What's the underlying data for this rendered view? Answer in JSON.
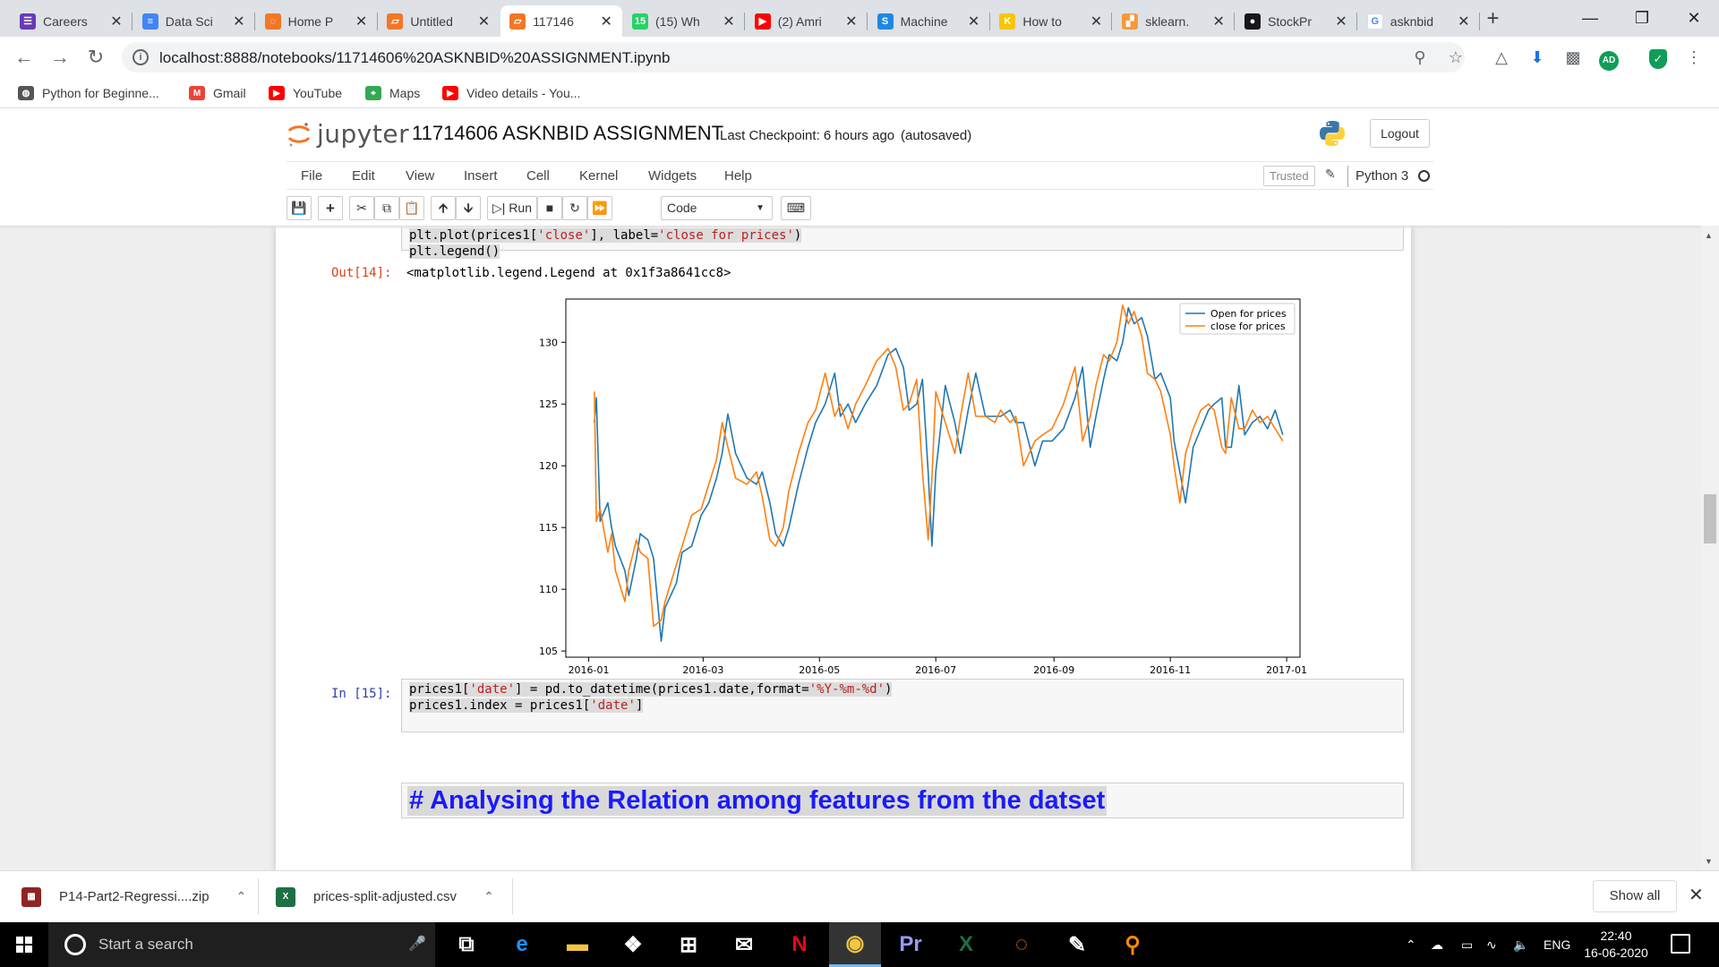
{
  "browser": {
    "tabs": [
      {
        "label": "Careers",
        "color": "#673ab7",
        "glyph": "☰",
        "icon": "careers-icon"
      },
      {
        "label": "Data Sci",
        "color": "#4285f4",
        "glyph": "≡",
        "icon": "docs-icon"
      },
      {
        "label": "Home P",
        "color": "#f37726",
        "glyph": "◌",
        "icon": "jupyter-icon"
      },
      {
        "label": "Untitled",
        "color": "#f37726",
        "glyph": "▱",
        "icon": "notebook-icon"
      },
      {
        "label": "117146",
        "color": "#f37726",
        "glyph": "▱",
        "icon": "notebook-icon"
      },
      {
        "label": "(15) Wh",
        "color": "#25d366",
        "glyph": "15",
        "icon": "whatsapp-icon"
      },
      {
        "label": "(2) Amri",
        "color": "#ff0000",
        "glyph": "▶",
        "icon": "youtube-icon"
      },
      {
        "label": "Machine",
        "color": "#1e88e5",
        "glyph": "S",
        "icon": "s-site-icon"
      },
      {
        "label": "How to",
        "color": "#f7c600",
        "glyph": "K",
        "icon": "k-site-icon"
      },
      {
        "label": "sklearn.",
        "color": "#f89939",
        "glyph": "▞",
        "icon": "sklearn-icon"
      },
      {
        "label": "StockPr",
        "color": "#181717",
        "glyph": "●",
        "icon": "github-icon"
      },
      {
        "label": "asknbid",
        "color": "#ffffff",
        "glyph": "G",
        "icon": "google-icon"
      }
    ],
    "active_tab": 4,
    "url": "localhost:8888/notebooks/11714606%20ASKNBID%20ASSIGNMENT.ipynb",
    "bookmarks": [
      {
        "label": "Python for Beginne...",
        "color": "#555555",
        "glyph": "◍",
        "icon": "globe-icon"
      },
      {
        "label": "Gmail",
        "color": "#ea4335",
        "glyph": "M",
        "icon": "gmail-icon"
      },
      {
        "label": "YouTube",
        "color": "#ff0000",
        "glyph": "▶",
        "icon": "youtube-icon"
      },
      {
        "label": "Maps",
        "color": "#34a853",
        "glyph": "⌖",
        "icon": "maps-icon"
      },
      {
        "label": "Video details - You...",
        "color": "#ff0000",
        "glyph": "▶",
        "icon": "youtube-icon"
      }
    ],
    "profile_initials": "AD"
  },
  "jupyter": {
    "logo_text": "jupyter",
    "notebook_title": "11714606 ASKNBID ASSIGNMENT",
    "checkpoint": "Last Checkpoint: 6 hours ago",
    "autosaved": "(autosaved)",
    "logout_label": "Logout",
    "menu": [
      "File",
      "Edit",
      "View",
      "Insert",
      "Cell",
      "Kernel",
      "Widgets",
      "Help"
    ],
    "trusted_label": "Trusted",
    "kernel_name": "Python 3",
    "toolbar": {
      "run_label": "Run",
      "cell_type": "Code"
    }
  },
  "cells": {
    "cell14": {
      "code_line1_prefix": "plt.plot(prices1[",
      "code_line1_str1": "'close'",
      "code_line1_mid": "], label=",
      "code_line1_str2": "'close for prices'",
      "code_line1_suffix": ")",
      "code_line2": "plt.legend()",
      "out_prompt": "Out[14]:",
      "output": "<matplotlib.legend.Legend at 0x1f3a8641cc8>"
    },
    "markdown": {
      "text": "#  Analysing the Relation among features from the datset"
    },
    "cell15": {
      "in_prompt": "In [15]:",
      "line1_a": "prices1[",
      "line1_s1": "'date'",
      "line1_b": "] = pd.to_datetime(prices1.date,format=",
      "line1_s2": "'%Y-%m-%d'",
      "line1_c": ")",
      "line2_a": "prices1.index = prices1[",
      "line2_s1": "'date'",
      "line2_b": "]"
    }
  },
  "chart_data": {
    "type": "line",
    "title": "",
    "xlabel": "",
    "ylabel": "",
    "x_ticks": [
      "2016-01",
      "2016-03",
      "2016-05",
      "2016-07",
      "2016-09",
      "2016-11",
      "2017-01"
    ],
    "y_ticks": [
      105,
      110,
      115,
      120,
      125,
      130
    ],
    "xlim": [
      "2015-12-20",
      "2017-01-08"
    ],
    "ylim": [
      104.5,
      133.5
    ],
    "legend_position": "upper right",
    "grid": false,
    "series": [
      {
        "name": "Open for prices",
        "color": "#1f77b4",
        "points": [
          [
            "2016-01-04",
            123.5
          ],
          [
            "2016-01-05",
            125.5
          ],
          [
            "2016-01-07",
            115.5
          ],
          [
            "2016-01-11",
            117.0
          ],
          [
            "2016-01-13",
            115.0
          ],
          [
            "2016-01-15",
            113.5
          ],
          [
            "2016-01-20",
            111.5
          ],
          [
            "2016-01-22",
            109.5
          ],
          [
            "2016-01-26",
            112.5
          ],
          [
            "2016-01-28",
            114.5
          ],
          [
            "2016-02-01",
            114.0
          ],
          [
            "2016-02-04",
            112.5
          ],
          [
            "2016-02-08",
            105.8
          ],
          [
            "2016-02-10",
            108.5
          ],
          [
            "2016-02-16",
            110.5
          ],
          [
            "2016-02-19",
            113.0
          ],
          [
            "2016-02-24",
            113.5
          ],
          [
            "2016-02-29",
            116.0
          ],
          [
            "2016-03-04",
            117.0
          ],
          [
            "2016-03-08",
            119.0
          ],
          [
            "2016-03-11",
            121.0
          ],
          [
            "2016-03-14",
            124.2
          ],
          [
            "2016-03-18",
            121.0
          ],
          [
            "2016-03-24",
            119.0
          ],
          [
            "2016-03-29",
            118.5
          ],
          [
            "2016-04-01",
            119.5
          ],
          [
            "2016-04-05",
            117.0
          ],
          [
            "2016-04-08",
            114.5
          ],
          [
            "2016-04-12",
            113.5
          ],
          [
            "2016-04-15",
            115.0
          ],
          [
            "2016-04-20",
            118.5
          ],
          [
            "2016-04-25",
            121.5
          ],
          [
            "2016-04-29",
            123.5
          ],
          [
            "2016-05-04",
            125.0
          ],
          [
            "2016-05-09",
            127.5
          ],
          [
            "2016-05-12",
            124.0
          ],
          [
            "2016-05-16",
            125.0
          ],
          [
            "2016-05-20",
            123.5
          ],
          [
            "2016-05-25",
            125.0
          ],
          [
            "2016-05-31",
            126.5
          ],
          [
            "2016-06-06",
            129.0
          ],
          [
            "2016-06-10",
            129.5
          ],
          [
            "2016-06-14",
            128.0
          ],
          [
            "2016-06-17",
            124.5
          ],
          [
            "2016-06-21",
            125.0
          ],
          [
            "2016-06-24",
            127.0
          ],
          [
            "2016-06-27",
            119.5
          ],
          [
            "2016-06-29",
            113.5
          ],
          [
            "2016-07-01",
            119.5
          ],
          [
            "2016-07-06",
            126.5
          ],
          [
            "2016-07-11",
            123.5
          ],
          [
            "2016-07-14",
            121.0
          ],
          [
            "2016-07-18",
            124.5
          ],
          [
            "2016-07-22",
            127.5
          ],
          [
            "2016-07-27",
            124.0
          ],
          [
            "2016-08-01",
            124.0
          ],
          [
            "2016-08-04",
            124.0
          ],
          [
            "2016-08-09",
            124.5
          ],
          [
            "2016-08-12",
            123.5
          ],
          [
            "2016-08-16",
            123.5
          ],
          [
            "2016-08-22",
            120.0
          ],
          [
            "2016-08-26",
            122.0
          ],
          [
            "2016-08-31",
            122.0
          ],
          [
            "2016-09-06",
            123.0
          ],
          [
            "2016-09-12",
            125.5
          ],
          [
            "2016-09-16",
            128.0
          ],
          [
            "2016-09-20",
            121.5
          ],
          [
            "2016-09-23",
            124.0
          ],
          [
            "2016-09-27",
            127.0
          ],
          [
            "2016-09-30",
            129.0
          ],
          [
            "2016-10-04",
            128.5
          ],
          [
            "2016-10-07",
            130.0
          ],
          [
            "2016-10-10",
            132.8
          ],
          [
            "2016-10-13",
            131.5
          ],
          [
            "2016-10-17",
            132.0
          ],
          [
            "2016-10-20",
            130.5
          ],
          [
            "2016-10-24",
            127.0
          ],
          [
            "2016-10-27",
            127.5
          ],
          [
            "2016-11-01",
            125.5
          ],
          [
            "2016-11-03",
            122.0
          ],
          [
            "2016-11-06",
            119.5
          ],
          [
            "2016-11-09",
            117.0
          ],
          [
            "2016-11-13",
            121.5
          ],
          [
            "2016-11-17",
            123.0
          ],
          [
            "2016-11-21",
            124.5
          ],
          [
            "2016-11-24",
            125.0
          ],
          [
            "2016-11-28",
            125.5
          ],
          [
            "2016-11-30",
            121.5
          ],
          [
            "2016-12-03",
            121.5
          ],
          [
            "2016-12-07",
            126.5
          ],
          [
            "2016-12-10",
            122.5
          ],
          [
            "2016-12-14",
            123.5
          ],
          [
            "2016-12-18",
            124.0
          ],
          [
            "2016-12-22",
            123.0
          ],
          [
            "2016-12-26",
            124.5
          ],
          [
            "2016-12-30",
            122.5
          ]
        ]
      },
      {
        "name": "close for prices",
        "color": "#ff7f0e",
        "points": [
          [
            "2016-01-04",
            126.0
          ],
          [
            "2016-01-05",
            115.5
          ],
          [
            "2016-01-07",
            116.5
          ],
          [
            "2016-01-11",
            113.0
          ],
          [
            "2016-01-13",
            114.5
          ],
          [
            "2016-01-15",
            111.5
          ],
          [
            "2016-01-20",
            109.0
          ],
          [
            "2016-01-22",
            111.5
          ],
          [
            "2016-01-26",
            114.0
          ],
          [
            "2016-01-28",
            113.0
          ],
          [
            "2016-02-01",
            112.5
          ],
          [
            "2016-02-04",
            107.0
          ],
          [
            "2016-02-08",
            107.5
          ],
          [
            "2016-02-10",
            109.0
          ],
          [
            "2016-02-16",
            112.0
          ],
          [
            "2016-02-19",
            113.5
          ],
          [
            "2016-02-24",
            116.0
          ],
          [
            "2016-02-29",
            116.5
          ],
          [
            "2016-03-04",
            118.5
          ],
          [
            "2016-03-08",
            120.5
          ],
          [
            "2016-03-11",
            123.5
          ],
          [
            "2016-03-14",
            121.5
          ],
          [
            "2016-03-18",
            119.0
          ],
          [
            "2016-03-24",
            118.5
          ],
          [
            "2016-03-29",
            119.5
          ],
          [
            "2016-04-01",
            117.5
          ],
          [
            "2016-04-05",
            114.0
          ],
          [
            "2016-04-08",
            113.5
          ],
          [
            "2016-04-12",
            115.0
          ],
          [
            "2016-04-15",
            118.0
          ],
          [
            "2016-04-20",
            121.0
          ],
          [
            "2016-04-25",
            123.5
          ],
          [
            "2016-04-29",
            124.5
          ],
          [
            "2016-05-04",
            127.5
          ],
          [
            "2016-05-09",
            124.0
          ],
          [
            "2016-05-12",
            125.0
          ],
          [
            "2016-05-16",
            123.0
          ],
          [
            "2016-05-20",
            125.0
          ],
          [
            "2016-05-25",
            126.5
          ],
          [
            "2016-05-31",
            128.5
          ],
          [
            "2016-06-06",
            129.5
          ],
          [
            "2016-06-10",
            128.0
          ],
          [
            "2016-06-14",
            124.5
          ],
          [
            "2016-06-17",
            125.0
          ],
          [
            "2016-06-21",
            127.0
          ],
          [
            "2016-06-24",
            119.5
          ],
          [
            "2016-06-27",
            114.0
          ],
          [
            "2016-06-29",
            119.0
          ],
          [
            "2016-07-01",
            126.0
          ],
          [
            "2016-07-06",
            123.5
          ],
          [
            "2016-07-11",
            121.0
          ],
          [
            "2016-07-14",
            124.0
          ],
          [
            "2016-07-18",
            127.5
          ],
          [
            "2016-07-22",
            124.0
          ],
          [
            "2016-07-27",
            124.0
          ],
          [
            "2016-08-01",
            123.5
          ],
          [
            "2016-08-04",
            124.5
          ],
          [
            "2016-08-09",
            123.5
          ],
          [
            "2016-08-12",
            124.0
          ],
          [
            "2016-08-16",
            120.0
          ],
          [
            "2016-08-22",
            122.0
          ],
          [
            "2016-08-26",
            122.5
          ],
          [
            "2016-08-31",
            123.0
          ],
          [
            "2016-09-06",
            125.0
          ],
          [
            "2016-09-12",
            128.0
          ],
          [
            "2016-09-16",
            122.0
          ],
          [
            "2016-09-20",
            124.0
          ],
          [
            "2016-09-23",
            126.5
          ],
          [
            "2016-09-27",
            129.0
          ],
          [
            "2016-09-30",
            128.5
          ],
          [
            "2016-10-04",
            130.0
          ],
          [
            "2016-10-07",
            133.0
          ],
          [
            "2016-10-10",
            131.5
          ],
          [
            "2016-10-13",
            132.5
          ],
          [
            "2016-10-17",
            130.5
          ],
          [
            "2016-10-20",
            127.5
          ],
          [
            "2016-10-24",
            127.0
          ],
          [
            "2016-10-27",
            126.0
          ],
          [
            "2016-11-01",
            122.5
          ],
          [
            "2016-11-03",
            120.0
          ],
          [
            "2016-11-06",
            117.0
          ],
          [
            "2016-11-09",
            121.0
          ],
          [
            "2016-11-13",
            123.0
          ],
          [
            "2016-11-17",
            124.5
          ],
          [
            "2016-11-21",
            125.0
          ],
          [
            "2016-11-24",
            124.5
          ],
          [
            "2016-11-28",
            121.5
          ],
          [
            "2016-11-30",
            121.0
          ],
          [
            "2016-12-03",
            125.5
          ],
          [
            "2016-12-07",
            123.0
          ],
          [
            "2016-12-10",
            123.0
          ],
          [
            "2016-12-14",
            124.5
          ],
          [
            "2016-12-18",
            123.5
          ],
          [
            "2016-12-22",
            124.0
          ],
          [
            "2016-12-26",
            123.0
          ],
          [
            "2016-12-30",
            122.0
          ]
        ]
      }
    ]
  },
  "downloads": [
    {
      "label": "P14-Part2-Regressi....zip",
      "color": "#8e2424",
      "glyph": "▦",
      "icon": "zip-file-icon"
    },
    {
      "label": "prices-split-adjusted.csv",
      "color": "#1d7044",
      "glyph": "X",
      "icon": "csv-file-icon"
    }
  ],
  "downloads_show_all": "Show all",
  "taskbar": {
    "search_placeholder": "Start a search",
    "apps": [
      {
        "name": "task-view-icon",
        "glyph": "⧉",
        "color": "#ffffff"
      },
      {
        "name": "edge-icon",
        "glyph": "e",
        "color": "#1e90ff"
      },
      {
        "name": "file-explorer-icon",
        "glyph": "▬",
        "color": "#f4c542"
      },
      {
        "name": "dropbox-icon",
        "glyph": "❖",
        "color": "#ffffff"
      },
      {
        "name": "store-icon",
        "glyph": "⊞",
        "color": "#ffffff"
      },
      {
        "name": "mail-icon",
        "glyph": "✉",
        "color": "#ffffff"
      },
      {
        "name": "netflix-icon",
        "glyph": "N",
        "color": "#e50914"
      },
      {
        "name": "chrome-icon",
        "glyph": "◉",
        "color": "#f4c542"
      },
      {
        "name": "premiere-icon",
        "glyph": "Pr",
        "color": "#9999ff"
      },
      {
        "name": "excel-icon",
        "glyph": "X",
        "color": "#1d7044"
      },
      {
        "name": "jupyter-icon",
        "glyph": "◌",
        "color": "#f37726"
      },
      {
        "name": "pdf-editor-icon",
        "glyph": "✎",
        "color": "#ffffff"
      },
      {
        "name": "search-tool-icon",
        "glyph": "⚲",
        "color": "#ff8c00"
      }
    ],
    "active_app": 7,
    "lang": "ENG",
    "time": "22:40",
    "date": "16-06-2020"
  }
}
